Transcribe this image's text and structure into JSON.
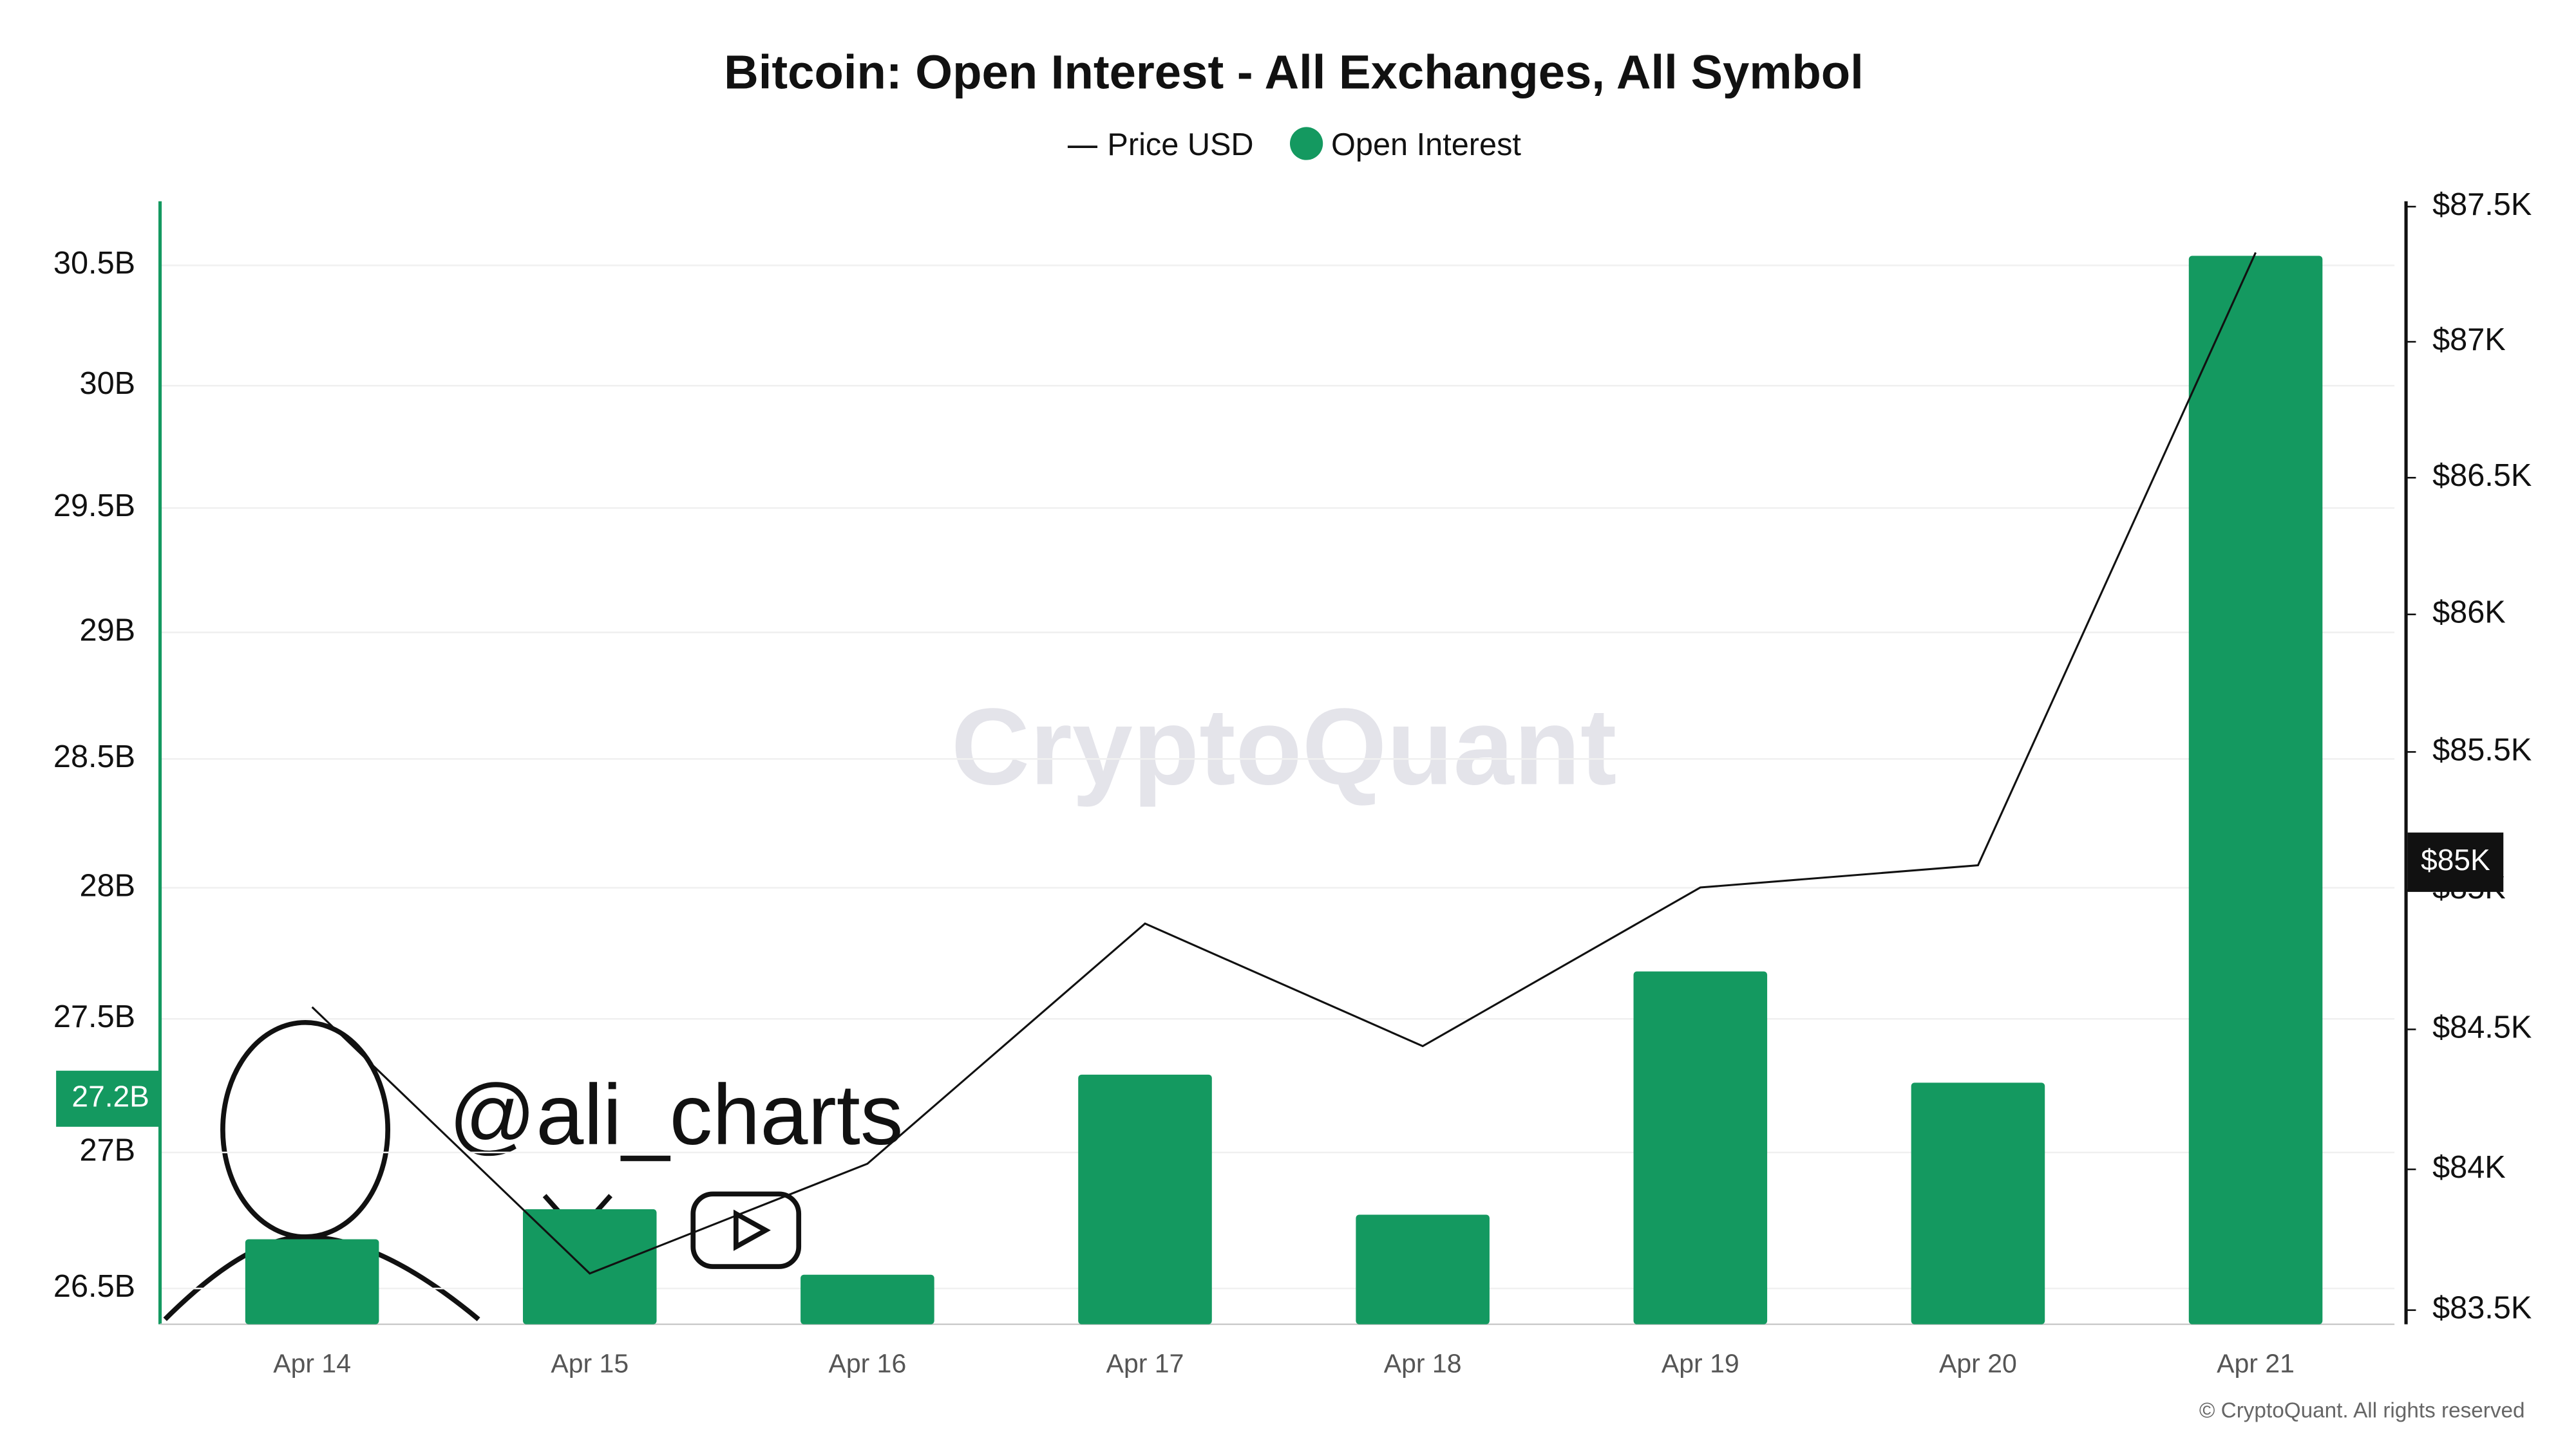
{
  "chart_data": {
    "type": "bar",
    "title": "Bitcoin: Open Interest - All Exchanges, All Symbol",
    "categories": [
      "Apr 14",
      "Apr 15",
      "Apr 16",
      "Apr 17",
      "Apr 18",
      "Apr 19",
      "Apr 20",
      "Apr 21"
    ],
    "series": [
      {
        "name": "Open Interest",
        "type": "bar",
        "color": "#149960",
        "values": [
          26.68,
          26.79,
          26.55,
          27.29,
          26.77,
          27.68,
          27.26,
          30.54
        ]
      },
      {
        "name": "Price USD",
        "type": "line",
        "axis": "y2",
        "color": "#111111",
        "values": [
          84.58,
          83.63,
          84.02,
          84.88,
          84.44,
          85.01,
          85.09,
          87.33
        ]
      }
    ],
    "y_scale": "log",
    "ylim": [
      26.37,
      30.77
    ],
    "yticks": [
      {
        "value": 26.5,
        "label": "26.5B"
      },
      {
        "value": 27,
        "label": "27B"
      },
      {
        "value": 27.5,
        "label": "27.5B"
      },
      {
        "value": 28,
        "label": "28B"
      },
      {
        "value": 28.5,
        "label": "28.5B"
      },
      {
        "value": 29,
        "label": "29B"
      },
      {
        "value": 29.5,
        "label": "29.5B"
      },
      {
        "value": 30,
        "label": "30B"
      },
      {
        "value": 30.5,
        "label": "30.5B"
      }
    ],
    "y2_scale": "log",
    "y2lim": [
      83.45,
      87.52
    ],
    "y2ticks": [
      {
        "value": 83.5,
        "label": "$83.5K"
      },
      {
        "value": 84,
        "label": "$84K"
      },
      {
        "value": 84.5,
        "label": "$84.5K"
      },
      {
        "value": 85,
        "label": "$85K"
      },
      {
        "value": 85.5,
        "label": "$85.5K"
      },
      {
        "value": 86,
        "label": "$86K"
      },
      {
        "value": 86.5,
        "label": "$86.5K"
      },
      {
        "value": 87,
        "label": "$87K"
      },
      {
        "value": 87.5,
        "label": "$87.5K"
      }
    ],
    "y_cursor": {
      "value": 27.2,
      "label": "27.2B"
    },
    "y2_cursor": {
      "value": 85,
      "label": "$85K"
    },
    "grid": true,
    "legend": "top",
    "watermark": "CryptoQuant",
    "overlay_handle": "@ali_charts",
    "copyright": "© CryptoQuant. All rights reserved"
  }
}
